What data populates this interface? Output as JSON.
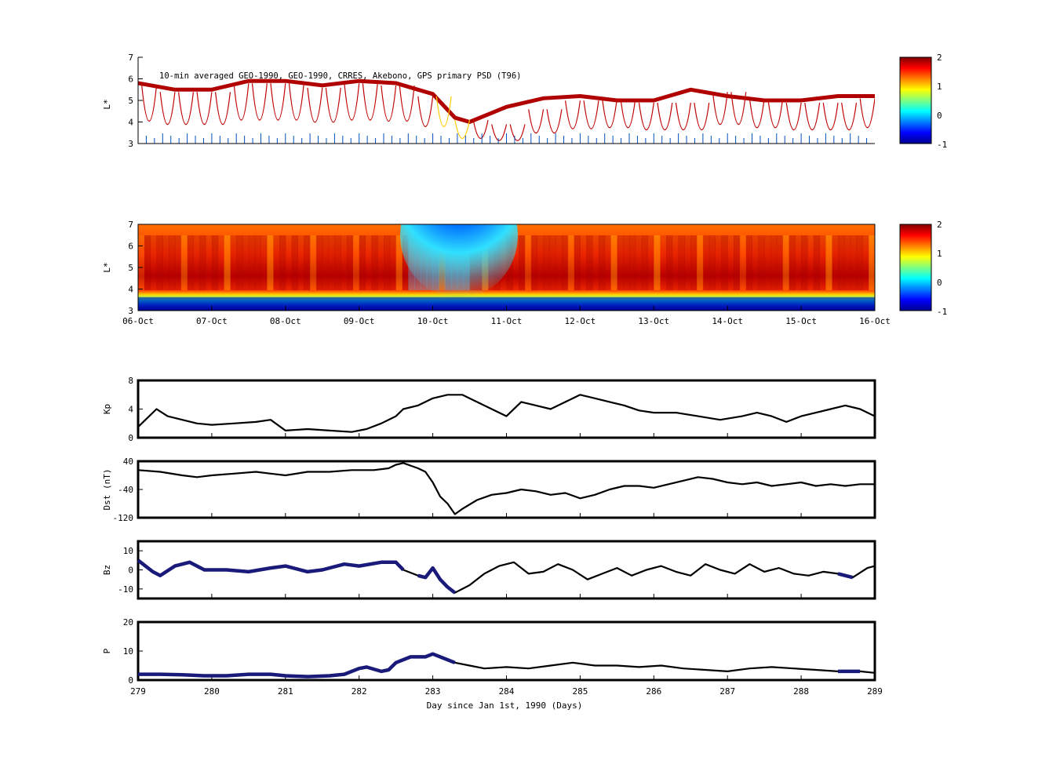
{
  "figure": {
    "title": "10-min averaged GEO-1990, GEO-1990, CRRES, Akebono, GPS  primary PSD (T96)",
    "x_date_ticks": [
      "06-Oct",
      "07-Oct",
      "08-Oct",
      "09-Oct",
      "10-Oct",
      "11-Oct",
      "12-Oct",
      "13-Oct",
      "14-Oct",
      "15-Oct",
      "16-Oct"
    ],
    "x_day_ticks": [
      "279",
      "280",
      "281",
      "282",
      "283",
      "284",
      "285",
      "286",
      "287",
      "288",
      "289"
    ],
    "x_label": "Day since Jan 1st, 1990 (Days)"
  },
  "chart_data": [
    {
      "id": "obs_psd",
      "type": "heatmap",
      "title": "10-min averaged GEO-1990, GEO-1990, CRRES, Akebono, GPS  primary PSD (T96)",
      "ylabel": "L*",
      "ylim": [
        3,
        7
      ],
      "yticks": [
        "3",
        "4",
        "5",
        "6",
        "7"
      ],
      "xlim": [
        279,
        289
      ],
      "colorbar": {
        "range": [
          -1,
          2
        ],
        "ticks": [
          "-1",
          "0",
          "1",
          "2"
        ],
        "colormap": "jet"
      },
      "description_series": {
        "geo_track_Lstar": {
          "x": [
            279,
            279.5,
            280,
            280.5,
            281,
            281.5,
            282,
            282.5,
            283,
            283.3,
            283.5,
            284,
            284.5,
            285,
            285.5,
            286,
            286.5,
            287,
            287.5,
            288,
            288.5,
            289
          ],
          "y": [
            5.8,
            5.5,
            5.5,
            5.9,
            5.9,
            5.7,
            5.9,
            5.8,
            5.3,
            4.2,
            4.0,
            4.7,
            5.1,
            5.2,
            5.0,
            5.0,
            5.5,
            5.2,
            5.0,
            5.0,
            5.2,
            5.2
          ]
        }
      }
    },
    {
      "id": "model_psd",
      "type": "heatmap",
      "ylabel": "L*",
      "ylim": [
        3,
        7
      ],
      "yticks": [
        "3",
        "4",
        "5",
        "6",
        "7"
      ],
      "xlim": [
        279,
        289
      ],
      "colorbar": {
        "range": [
          -1,
          2
        ],
        "ticks": [
          "-1",
          "0",
          "1",
          "2"
        ],
        "colormap": "jet"
      }
    },
    {
      "id": "kp",
      "type": "line",
      "ylabel": "Kp",
      "ylim": [
        0,
        8
      ],
      "yticks": [
        "0",
        "4",
        "8"
      ],
      "xlim": [
        279,
        289
      ],
      "x": [
        279,
        279.1,
        279.25,
        279.4,
        279.6,
        279.8,
        280,
        280.3,
        280.6,
        280.8,
        281,
        281.3,
        281.6,
        281.9,
        282.1,
        282.3,
        282.5,
        282.6,
        282.8,
        283,
        283.2,
        283.4,
        283.6,
        283.8,
        284,
        284.2,
        284.4,
        284.6,
        284.8,
        285,
        285.2,
        285.4,
        285.6,
        285.8,
        286,
        286.3,
        286.6,
        286.9,
        287.2,
        287.4,
        287.6,
        287.8,
        288,
        288.2,
        288.4,
        288.6,
        288.8,
        289
      ],
      "y": [
        1.5,
        2.5,
        4.0,
        3.0,
        2.5,
        2.0,
        1.8,
        2.0,
        2.2,
        2.5,
        1.0,
        1.2,
        1.0,
        0.8,
        1.2,
        2.0,
        3.0,
        4.0,
        4.5,
        5.5,
        6.0,
        6.0,
        5.0,
        4.0,
        3.0,
        5.0,
        4.5,
        4.0,
        5.0,
        6.0,
        5.5,
        5.0,
        4.5,
        3.8,
        3.5,
        3.5,
        3.0,
        2.5,
        3.0,
        3.5,
        3.0,
        2.2,
        3.0,
        3.5,
        4.0,
        4.5,
        4.0,
        3.0
      ]
    },
    {
      "id": "dst",
      "type": "line",
      "ylabel": "Dst (nT)",
      "ylim": [
        -120,
        40
      ],
      "yticks": [
        "-120",
        "-40",
        "40"
      ],
      "xlim": [
        279,
        289
      ],
      "x": [
        279,
        279.3,
        279.6,
        279.8,
        280,
        280.3,
        280.6,
        280.8,
        281,
        281.3,
        281.6,
        281.9,
        282.2,
        282.4,
        282.5,
        282.6,
        282.8,
        282.9,
        283,
        283.1,
        283.2,
        283.3,
        283.4,
        283.6,
        283.8,
        284,
        284.2,
        284.4,
        284.6,
        284.8,
        285,
        285.2,
        285.4,
        285.6,
        285.8,
        286,
        286.2,
        286.4,
        286.6,
        286.8,
        287,
        287.2,
        287.4,
        287.6,
        287.8,
        288,
        288.2,
        288.4,
        288.6,
        288.8,
        289
      ],
      "y": [
        15,
        10,
        0,
        -5,
        0,
        5,
        10,
        5,
        0,
        10,
        10,
        15,
        15,
        20,
        30,
        35,
        20,
        10,
        -20,
        -60,
        -80,
        -110,
        -95,
        -70,
        -55,
        -50,
        -40,
        -45,
        -55,
        -50,
        -65,
        -55,
        -40,
        -30,
        -30,
        -35,
        -25,
        -15,
        -5,
        -10,
        -20,
        -25,
        -20,
        -30,
        -25,
        -20,
        -30,
        -25,
        -30,
        -25,
        -25
      ]
    },
    {
      "id": "bz",
      "type": "line",
      "ylabel": "Bz",
      "ylim": [
        -15,
        15
      ],
      "yticks": [
        "-10",
        "0",
        "10"
      ],
      "xlim": [
        279,
        289
      ],
      "x": [
        279,
        279.2,
        279.3,
        279.5,
        279.7,
        279.9,
        280.2,
        280.5,
        280.8,
        281,
        281.3,
        281.5,
        281.8,
        282,
        282.3,
        282.5,
        282.6,
        282.8,
        282.9,
        283,
        283.1,
        283.2,
        283.3,
        283.5,
        283.7,
        283.9,
        284.1,
        284.3,
        284.5,
        284.7,
        284.9,
        285.1,
        285.3,
        285.5,
        285.7,
        285.9,
        286.1,
        286.3,
        286.5,
        286.7,
        286.9,
        287.1,
        287.3,
        287.5,
        287.7,
        287.9,
        288.1,
        288.3,
        288.5,
        288.7,
        288.9,
        289
      ],
      "y": [
        5,
        -1,
        -3,
        2,
        4,
        0,
        0,
        -1,
        1,
        2,
        -1,
        0,
        3,
        2,
        4,
        4,
        0,
        -3,
        -4,
        1,
        -5,
        -9,
        -12,
        -8,
        -2,
        2,
        4,
        -2,
        -1,
        3,
        0,
        -5,
        -2,
        1,
        -3,
        0,
        2,
        -1,
        -3,
        3,
        0,
        -2,
        3,
        -1,
        1,
        -2,
        -3,
        -1,
        -2,
        -4,
        1,
        2
      ]
    },
    {
      "id": "p",
      "type": "line",
      "ylabel": "P",
      "ylim": [
        0,
        20
      ],
      "yticks": [
        "0",
        "10",
        "20"
      ],
      "xlim": [
        279,
        289
      ],
      "x": [
        279,
        279.3,
        279.6,
        279.9,
        280.2,
        280.5,
        280.8,
        281,
        281.3,
        281.6,
        281.8,
        282,
        282.1,
        282.3,
        282.4,
        282.5,
        282.7,
        282.9,
        283,
        283.2,
        283.3,
        283.5,
        283.7,
        284,
        284.3,
        284.6,
        284.9,
        285.2,
        285.5,
        285.8,
        286.1,
        286.4,
        286.7,
        287,
        287.3,
        287.6,
        287.9,
        288.2,
        288.5,
        288.8,
        289
      ],
      "y": [
        2,
        2,
        1.8,
        1.5,
        1.5,
        2,
        2,
        1.5,
        1.2,
        1.5,
        2,
        4,
        4.5,
        3,
        3.5,
        6,
        8,
        8,
        9,
        7,
        6,
        5,
        4,
        4.5,
        4,
        5,
        6,
        5,
        5,
        4.5,
        5,
        4,
        3.5,
        3,
        4,
        4.5,
        4,
        3.5,
        3,
        3,
        2.5
      ]
    }
  ]
}
